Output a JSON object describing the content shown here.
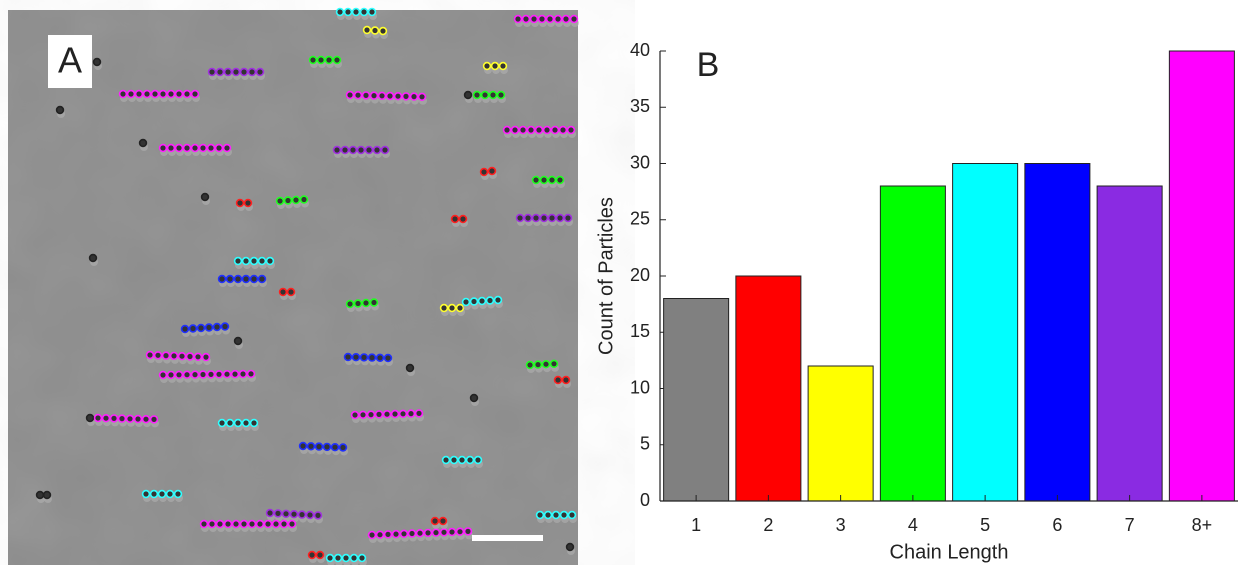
{
  "image_panel": {
    "label": "A"
  },
  "chart_data": {
    "type": "bar",
    "panel_label": "B",
    "x_label": "Chain Length",
    "y_label": "Count of Particles",
    "categories": [
      "1",
      "2",
      "3",
      "4",
      "5",
      "6",
      "7",
      "8+"
    ],
    "values": [
      18,
      20,
      12,
      28,
      30,
      30,
      28,
      40
    ],
    "colors": [
      "#808080",
      "#ff0000",
      "#ffff00",
      "#00ff00",
      "#00ffff",
      "#0000ff",
      "#8a2be2",
      "#ff00ff"
    ],
    "ylim": [
      0,
      40
    ],
    "yticks": [
      0,
      5,
      10,
      15,
      20,
      25,
      30,
      35,
      40
    ],
    "grid": false
  }
}
